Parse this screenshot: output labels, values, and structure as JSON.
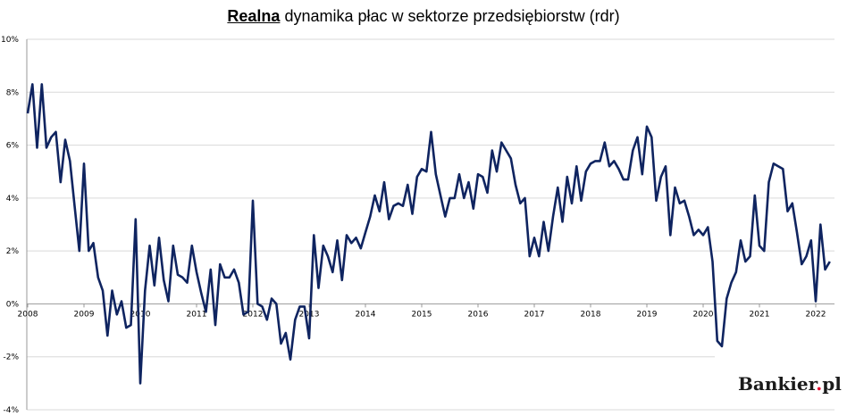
{
  "title": {
    "underlined": "Realna",
    "rest": " dynamika płac w sektorze przedsiębiorstw (rdr)"
  },
  "logo": {
    "name": "Bankier",
    "dot": ".",
    "tld": "pl"
  },
  "colors": {
    "line": "#0f2460",
    "grid": "#d9d9d9",
    "logo_dot": "#e4002b"
  },
  "chart_data": {
    "type": "line",
    "title": "Realna dynamika płac w sektorze przedsiębiorstw (rdr)",
    "xlabel": "",
    "ylabel": "",
    "ylim": [
      -4,
      10
    ],
    "y_ticks": [
      -4,
      -2,
      0,
      2,
      4,
      6,
      8,
      10
    ],
    "y_tick_labels": [
      "-4%",
      "-2%",
      "0%",
      "2%",
      "4%",
      "6%",
      "8%",
      "10%"
    ],
    "x_tick_labels": [
      "2008",
      "2009",
      "2010",
      "2011",
      "2012",
      "2013",
      "2014",
      "2015",
      "2016",
      "2017",
      "2018",
      "2019",
      "2020",
      "2021",
      "2022"
    ],
    "x_start": "2008-01",
    "grid": true,
    "legend": "none",
    "series": [
      {
        "values": [
          7.2,
          8.3,
          5.9,
          8.3,
          5.9,
          6.3,
          6.5,
          4.6,
          6.2,
          5.4,
          3.7,
          2.0,
          5.3,
          2.0,
          2.3,
          1.0,
          0.5,
          -1.2,
          0.5,
          -0.4,
          0.1,
          -0.9,
          -0.8,
          3.2,
          -3.0,
          0.5,
          2.2,
          0.7,
          2.5,
          0.9,
          0.1,
          2.2,
          1.1,
          1.0,
          0.8,
          2.2,
          1.2,
          0.4,
          -0.3,
          1.3,
          -0.8,
          1.5,
          1.0,
          1.0,
          1.3,
          0.8,
          -0.4,
          -0.3,
          3.9,
          0.0,
          -0.1,
          -0.6,
          0.2,
          0.0,
          -1.5,
          -1.1,
          -2.1,
          -0.6,
          -0.1,
          -0.1,
          -1.3,
          2.6,
          0.6,
          2.2,
          1.8,
          1.2,
          2.4,
          0.9,
          2.6,
          2.3,
          2.5,
          2.1,
          2.7,
          3.3,
          4.1,
          3.5,
          4.6,
          3.2,
          3.7,
          3.8,
          3.7,
          4.5,
          3.4,
          4.8,
          5.1,
          5.0,
          6.5,
          4.9,
          4.1,
          3.3,
          4.0,
          4.0,
          4.9,
          4.0,
          4.6,
          3.6,
          4.9,
          4.8,
          4.2,
          5.8,
          5.0,
          6.1,
          5.8,
          5.5,
          4.5,
          3.8,
          4.0,
          1.8,
          2.5,
          1.8,
          3.1,
          2.0,
          3.3,
          4.4,
          3.1,
          4.8,
          3.8,
          5.2,
          3.9,
          5.0,
          5.3,
          5.4,
          5.4,
          6.1,
          5.2,
          5.4,
          5.1,
          4.7,
          4.7,
          5.8,
          6.3,
          4.9,
          6.7,
          6.3,
          3.9,
          4.8,
          5.2,
          2.6,
          4.4,
          3.8,
          3.9,
          3.3,
          2.6,
          2.8,
          2.6,
          2.9,
          1.6,
          -1.4,
          -1.6,
          0.2,
          0.8,
          1.2,
          2.4,
          1.6,
          1.8,
          4.1,
          2.2,
          2.0,
          4.6,
          5.3,
          5.2,
          5.1,
          3.5,
          3.8,
          2.7,
          1.5,
          1.8,
          2.4,
          0.1,
          3.0,
          1.3,
          1.6
        ]
      }
    ]
  }
}
